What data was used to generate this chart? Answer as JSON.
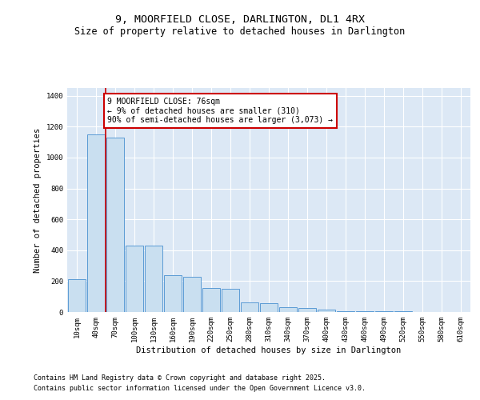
{
  "title1": "9, MOORFIELD CLOSE, DARLINGTON, DL1 4RX",
  "title2": "Size of property relative to detached houses in Darlington",
  "xlabel": "Distribution of detached houses by size in Darlington",
  "ylabel": "Number of detached properties",
  "categories": [
    "10sqm",
    "40sqm",
    "70sqm",
    "100sqm",
    "130sqm",
    "160sqm",
    "190sqm",
    "220sqm",
    "250sqm",
    "280sqm",
    "310sqm",
    "340sqm",
    "370sqm",
    "400sqm",
    "430sqm",
    "460sqm",
    "490sqm",
    "520sqm",
    "550sqm",
    "580sqm",
    "610sqm"
  ],
  "values": [
    210,
    1150,
    1130,
    430,
    430,
    240,
    230,
    155,
    150,
    60,
    55,
    30,
    25,
    15,
    7,
    5,
    3,
    5,
    2,
    0,
    2
  ],
  "bar_color": "#c9dff0",
  "bar_edge_color": "#5b9bd5",
  "background_color": "#dce8f5",
  "grid_color": "#ffffff",
  "annotation_text": "9 MOORFIELD CLOSE: 76sqm\n← 9% of detached houses are smaller (310)\n90% of semi-detached houses are larger (3,073) →",
  "vline_color": "#cc0000",
  "annotation_box_edge": "#cc0000",
  "ylim": [
    0,
    1450
  ],
  "yticks": [
    0,
    200,
    400,
    600,
    800,
    1000,
    1200,
    1400
  ],
  "footer1": "Contains HM Land Registry data © Crown copyright and database right 2025.",
  "footer2": "Contains public sector information licensed under the Open Government Licence v3.0.",
  "title_fontsize": 9.5,
  "subtitle_fontsize": 8.5,
  "axis_label_fontsize": 7.5,
  "tick_fontsize": 6.5,
  "annotation_fontsize": 7,
  "footer_fontsize": 6
}
